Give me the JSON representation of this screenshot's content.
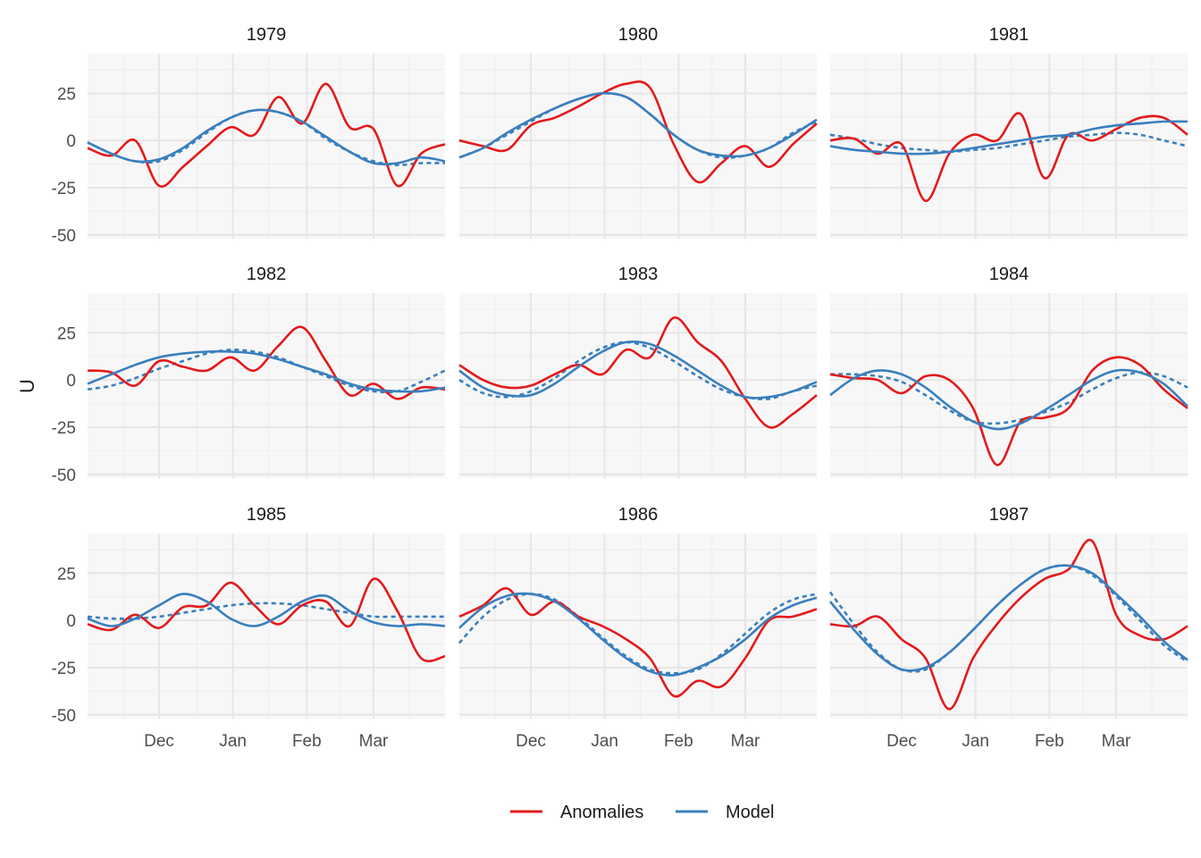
{
  "chart_data": {
    "type": "line",
    "ylabel": "U",
    "ylim": [
      -52,
      46
    ],
    "y_ticks": [
      -50,
      -25,
      0,
      25
    ],
    "y_tick_labels": [
      "-50",
      "-25",
      "0",
      "25"
    ],
    "x_range": [
      "1 Nov",
      "31 Mar"
    ],
    "x_tick_labels": [
      "Dec",
      "Jan",
      "Feb",
      "Mar"
    ],
    "grid": true,
    "legend_position": "bottom",
    "legend": [
      {
        "name": "Anomalies",
        "color": "#e31a1c"
      },
      {
        "name": "Model",
        "color": "#3a7fbd"
      }
    ],
    "colors": {
      "anomalies": "#e31a1c",
      "model": "#3a7fbd"
    },
    "x_days": [
      0,
      10,
      20,
      30,
      40,
      50,
      60,
      70,
      80,
      90,
      100,
      110,
      120,
      130,
      140,
      150
    ],
    "panels": [
      {
        "title": "1979",
        "anomalies": [
          -4,
          -8,
          0,
          -24,
          -14,
          -3,
          7,
          3,
          23,
          9,
          30,
          7,
          6,
          -24,
          -7,
          -2
        ],
        "model": [
          -1,
          -7,
          -11,
          -10,
          -4,
          5,
          12,
          16,
          15,
          10,
          2,
          -6,
          -12,
          -12,
          -9,
          -11
        ],
        "model_dashed": [
          -1,
          -7,
          -11,
          -11,
          -5,
          4,
          12,
          16,
          15,
          10,
          1,
          -6,
          -11,
          -13,
          -12,
          -12
        ]
      },
      {
        "title": "1980",
        "anomalies": [
          0,
          -3,
          -5,
          8,
          12,
          18,
          25,
          30,
          28,
          -2,
          -22,
          -12,
          -3,
          -14,
          -2,
          9
        ],
        "model": [
          -9,
          -4,
          4,
          11,
          17,
          22,
          25,
          23,
          14,
          3,
          -5,
          -8,
          -8,
          -4,
          3,
          11
        ],
        "model_dashed": [
          -9,
          -4,
          3,
          10,
          17,
          22,
          25,
          23,
          14,
          3,
          -5,
          -9,
          -8,
          -4,
          4,
          10
        ]
      },
      {
        "title": "1981",
        "anomalies": [
          0,
          1,
          -7,
          -2,
          -32,
          -7,
          3,
          0,
          14,
          -20,
          3,
          0,
          6,
          12,
          12,
          3
        ],
        "model": [
          -3,
          -5,
          -6,
          -7,
          -7,
          -6,
          -4,
          -2,
          0,
          2,
          3,
          6,
          8,
          9,
          10,
          10
        ],
        "model_dashed": [
          3,
          1,
          -2,
          -4,
          -5,
          -6,
          -5,
          -4,
          -2,
          0,
          2,
          3,
          4,
          3,
          0,
          -3
        ]
      },
      {
        "title": "1982",
        "anomalies": [
          5,
          4,
          -3,
          10,
          7,
          5,
          12,
          5,
          18,
          28,
          10,
          -8,
          -2,
          -10,
          -4,
          -5
        ],
        "model": [
          -2,
          3,
          8,
          12,
          14,
          15,
          15,
          14,
          11,
          7,
          3,
          -2,
          -5,
          -6,
          -6,
          -4
        ],
        "model_dashed": [
          -5,
          -3,
          1,
          6,
          10,
          14,
          16,
          15,
          12,
          7,
          2,
          -3,
          -6,
          -6,
          -1,
          5
        ]
      },
      {
        "title": "1983",
        "anomalies": [
          8,
          0,
          -4,
          -3,
          3,
          8,
          3,
          16,
          12,
          33,
          20,
          10,
          -10,
          -25,
          -18,
          -8
        ],
        "model": [
          5,
          -4,
          -8,
          -8,
          -2,
          7,
          15,
          20,
          19,
          13,
          5,
          -3,
          -9,
          -9,
          -6,
          -1
        ],
        "model_dashed": [
          0,
          -7,
          -9,
          -6,
          1,
          10,
          17,
          20,
          17,
          10,
          2,
          -5,
          -9,
          -10,
          -6,
          -3
        ]
      },
      {
        "title": "1984",
        "anomalies": [
          3,
          1,
          0,
          -7,
          2,
          0,
          -15,
          -45,
          -22,
          -20,
          -15,
          5,
          12,
          8,
          -5,
          -15
        ],
        "model": [
          -8,
          1,
          5,
          3,
          -4,
          -14,
          -22,
          -26,
          -23,
          -16,
          -8,
          0,
          5,
          4,
          -2,
          -14
        ],
        "model_dashed": [
          3,
          3,
          2,
          -1,
          -8,
          -16,
          -22,
          -23,
          -21,
          -17,
          -12,
          -5,
          1,
          4,
          2,
          -4
        ]
      },
      {
        "title": "1985",
        "anomalies": [
          -2,
          -5,
          3,
          -4,
          7,
          8,
          20,
          8,
          -2,
          8,
          10,
          -3,
          22,
          5,
          -20,
          -19
        ],
        "model": [
          1,
          -3,
          1,
          8,
          14,
          10,
          1,
          -3,
          2,
          10,
          13,
          5,
          -1,
          -3,
          -2,
          -3
        ],
        "model_dashed": [
          2,
          1,
          1,
          2,
          4,
          6,
          8,
          9,
          9,
          8,
          6,
          4,
          2,
          2,
          2,
          2
        ]
      },
      {
        "title": "1986",
        "anomalies": [
          2,
          8,
          17,
          3,
          10,
          2,
          -3,
          -10,
          -20,
          -40,
          -32,
          -35,
          -20,
          0,
          2,
          6
        ],
        "model": [
          -4,
          7,
          13,
          14,
          10,
          1,
          -10,
          -20,
          -27,
          -29,
          -25,
          -19,
          -10,
          1,
          8,
          12
        ],
        "model_dashed": [
          -12,
          2,
          11,
          14,
          11,
          2,
          -9,
          -19,
          -26,
          -28,
          -26,
          -18,
          -7,
          4,
          11,
          14
        ]
      },
      {
        "title": "1987",
        "anomalies": [
          -2,
          -3,
          2,
          -10,
          -20,
          -47,
          -20,
          -2,
          12,
          22,
          27,
          42,
          3,
          -8,
          -10,
          -3
        ],
        "model": [
          10,
          -5,
          -18,
          -26,
          -25,
          -17,
          -5,
          8,
          19,
          27,
          29,
          25,
          14,
          2,
          -11,
          -21
        ],
        "model_dashed": [
          15,
          -2,
          -17,
          -26,
          -26,
          -17,
          -5,
          8,
          19,
          27,
          29,
          24,
          13,
          0,
          -13,
          -22
        ]
      }
    ]
  }
}
